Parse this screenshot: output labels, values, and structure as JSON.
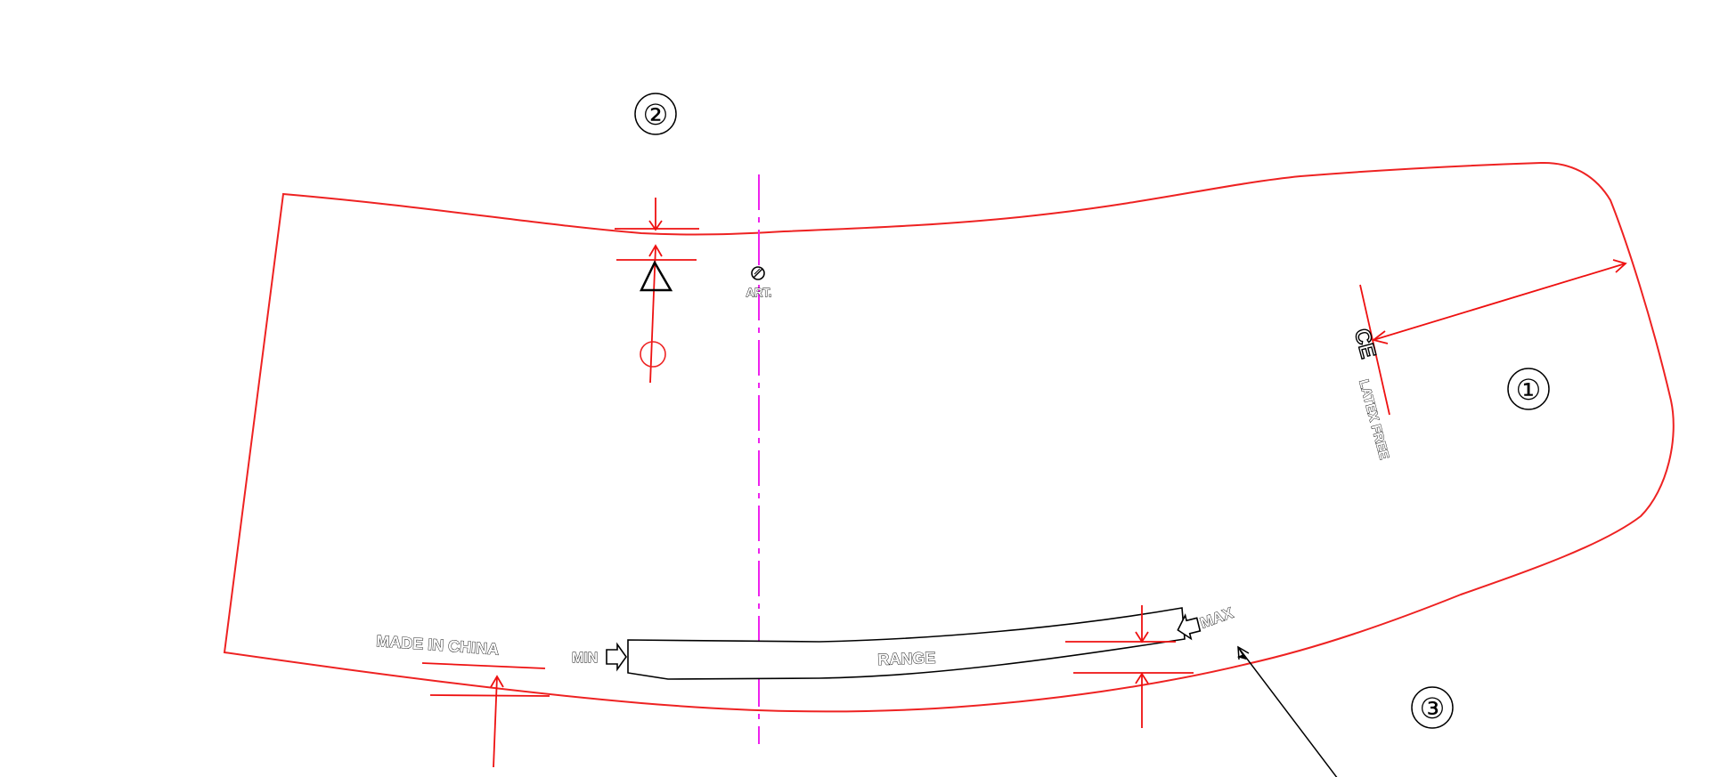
{
  "callouts": {
    "c1": "①",
    "c2": "②",
    "c3": "③"
  },
  "labels": {
    "art": "ART.",
    "latex_free": "LATEX FREE",
    "ce_mark": "CE",
    "made_in_china": "MADE IN CHINA",
    "range": "RANGE",
    "min": "MIN",
    "max": "MAX"
  },
  "colors": {
    "outline": "#ee2222",
    "dimension": "#ee1111",
    "centerline": "#ee22ee",
    "print": "#000000"
  }
}
